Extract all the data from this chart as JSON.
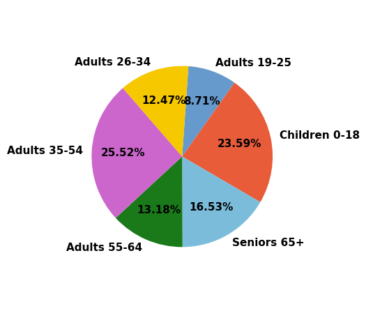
{
  "labels": [
    "Adults 19-25",
    "Children 0-18",
    "Seniors 65+",
    "Adults 55-64",
    "Adults 35-54",
    "Adults 26-34"
  ],
  "values": [
    8.71,
    23.59,
    16.53,
    13.18,
    25.52,
    12.47
  ],
  "colors": [
    "#6699cc",
    "#e85c3a",
    "#7bbcdb",
    "#1a7a1a",
    "#cc66cc",
    "#f5c800"
  ],
  "autopct_fontsize": 11,
  "label_fontsize": 11,
  "startangle": 86,
  "figsize": [
    5.25,
    4.49
  ],
  "dpi": 100
}
